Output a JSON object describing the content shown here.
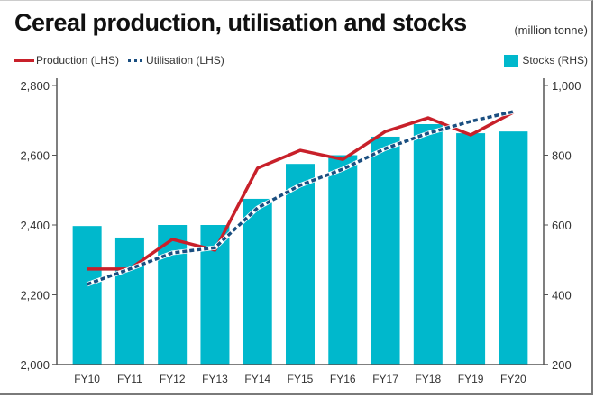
{
  "chart_data": {
    "type": "bar",
    "title": "Cereal production, utilisation and stocks",
    "units": "(million tonne)",
    "categories": [
      "FY10",
      "FY11",
      "FY12",
      "FY13",
      "FY14",
      "FY15",
      "FY16",
      "FY17",
      "FY18",
      "FY19",
      "FY20"
    ],
    "series": [
      {
        "name": "Production (LHS)",
        "type": "line",
        "axis": "left",
        "color": "#c8202a",
        "values": [
          2274,
          2274,
          2359,
          2328,
          2563,
          2614,
          2588,
          2668,
          2707,
          2658,
          2723
        ]
      },
      {
        "name": "Utilisation (LHS)",
        "type": "line",
        "style": "dotted",
        "axis": "left",
        "color": "#1a4e80",
        "values": [
          2230,
          2274,
          2320,
          2335,
          2449,
          2514,
          2560,
          2619,
          2663,
          2697,
          2725
        ]
      },
      {
        "name": "Stocks (RHS)",
        "type": "bar",
        "axis": "right",
        "color": "#00b8cc",
        "values": [
          597,
          564,
          600,
          600,
          675,
          775,
          800,
          853,
          889,
          863,
          868
        ]
      }
    ],
    "left_axis": {
      "ylim": [
        2000,
        2800
      ],
      "ticks": [
        2000,
        2200,
        2400,
        2600,
        2800
      ],
      "tick_labels": [
        "2,000",
        "2,200",
        "2,400",
        "2,600",
        "2,800"
      ]
    },
    "right_axis": {
      "ylim": [
        200,
        1000
      ],
      "ticks": [
        200,
        400,
        600,
        800,
        1000
      ],
      "tick_labels": [
        "200",
        "400",
        "600",
        "800",
        "1,000"
      ]
    },
    "grid": false,
    "legend": "top"
  }
}
